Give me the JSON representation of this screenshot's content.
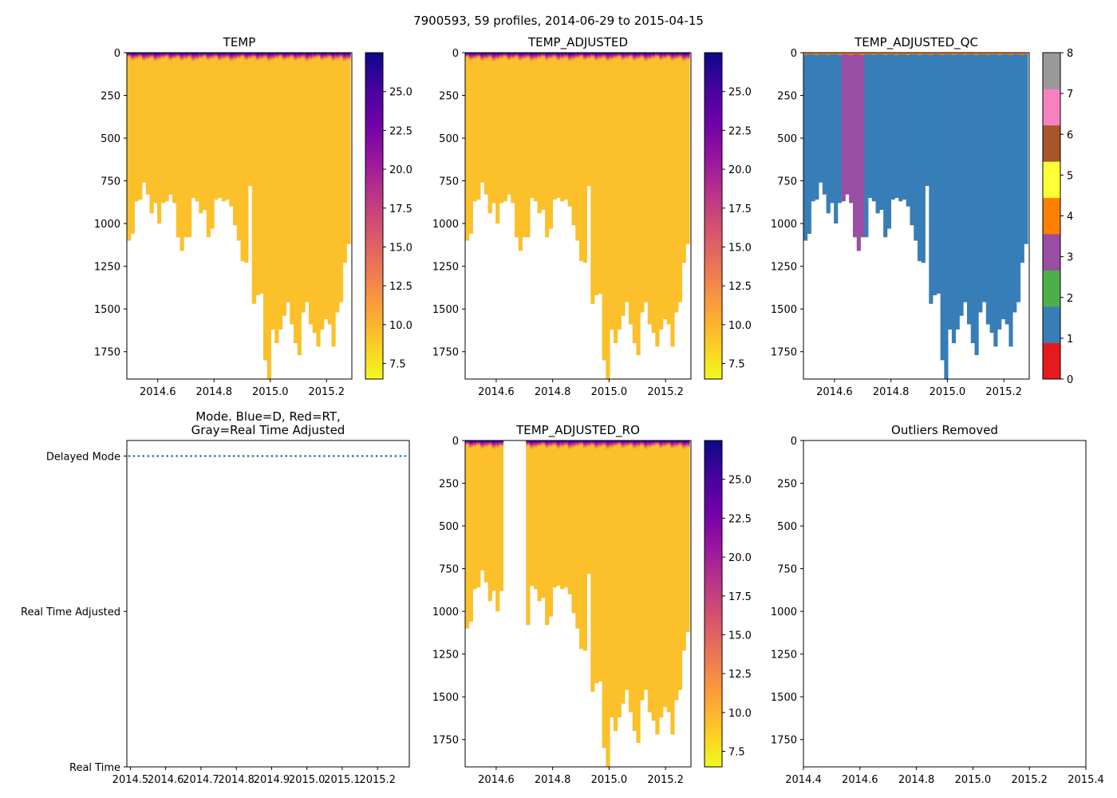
{
  "title": "7900593, 59 profiles, 2014-06-29 to 2015-04-15",
  "colors": {
    "mask_white": "#ffffff",
    "temp_surface_stops": [
      "#0d0887",
      "#7e03a8",
      "#cc4778",
      "#f89540",
      "#fbc82d"
    ],
    "temp_deep": "#fbc02a",
    "qc_1_color": "#377eb8",
    "qc_3_color": "#984ea3",
    "qc_4_color": "#ff7f00",
    "mode_dots": "#1f77b4",
    "plasma_stops": [
      "#f0f921",
      "#fdca26",
      "#fb9f3a",
      "#ed7953",
      "#d8576b",
      "#bd3786",
      "#9c179e",
      "#7201a8",
      "#46039f",
      "#0d0887"
    ],
    "qc_stops": [
      "#e41a1c",
      "#377eb8",
      "#4daf4a",
      "#984ea3",
      "#ff7f00",
      "#ffff33",
      "#a65628",
      "#f781bf",
      "#999999"
    ]
  },
  "chart_data": [
    {
      "type": "heatmap",
      "title": "TEMP",
      "x_ticks": [
        "2014.6",
        "2014.8",
        "2015.0",
        "2015.2"
      ],
      "x_tick_values": [
        2014.6,
        2014.8,
        2015.0,
        2015.2
      ],
      "y_ticks": [
        "0",
        "250",
        "500",
        "750",
        "1000",
        "1250",
        "1500",
        "1750"
      ],
      "y_tick_values": [
        0,
        250,
        500,
        750,
        1000,
        1250,
        1500,
        1750
      ],
      "xlim": [
        2014.49,
        2015.29
      ],
      "ylim": [
        1910,
        0
      ],
      "colorbar": {
        "ticks": [
          "7.5",
          "10.0",
          "12.5",
          "15.0",
          "17.5",
          "20.0",
          "22.5",
          "25.0"
        ],
        "tick_values": [
          7.5,
          10,
          12.5,
          15,
          17.5,
          20,
          22.5,
          25
        ],
        "range": [
          6.5,
          27.5
        ]
      },
      "profile_time_range": [
        2014.49,
        2015.285
      ],
      "max_depth": [
        1100,
        1060,
        870,
        860,
        760,
        830,
        940,
        880,
        1000,
        880,
        870,
        830,
        880,
        1080,
        1160,
        1080,
        1080,
        850,
        870,
        940,
        920,
        1080,
        1030,
        860,
        850,
        870,
        860,
        900,
        1010,
        1100,
        1220,
        1230,
        780,
        1470,
        1420,
        1410,
        1800,
        1910,
        1620,
        1700,
        1620,
        1540,
        1460,
        1590,
        1700,
        1770,
        1520,
        1460,
        1590,
        1640,
        1720,
        1620,
        1560,
        1590,
        1720,
        1520,
        1460,
        1230,
        1120
      ],
      "surface_mixed_layer_m": 60
    },
    {
      "type": "heatmap",
      "title": "TEMP_ADJUSTED",
      "x_ticks": [
        "2014.6",
        "2014.8",
        "2015.0",
        "2015.2"
      ],
      "x_tick_values": [
        2014.6,
        2014.8,
        2015.0,
        2015.2
      ],
      "y_ticks": [
        "0",
        "250",
        "500",
        "750",
        "1000",
        "1250",
        "1500",
        "1750"
      ],
      "y_tick_values": [
        0,
        250,
        500,
        750,
        1000,
        1250,
        1500,
        1750
      ],
      "xlim": [
        2014.49,
        2015.29
      ],
      "ylim": [
        1910,
        0
      ],
      "colorbar": {
        "ticks": [
          "7.5",
          "10.0",
          "12.5",
          "15.0",
          "17.5",
          "20.0",
          "22.5",
          "25.0"
        ],
        "tick_values": [
          7.5,
          10,
          12.5,
          15,
          17.5,
          20,
          22.5,
          25
        ],
        "range": [
          6.5,
          27.5
        ]
      },
      "same_profiles_as": "TEMP"
    },
    {
      "type": "heatmap",
      "title": "TEMP_ADJUSTED_QC",
      "x_ticks": [
        "2014.6",
        "2014.8",
        "2015.0",
        "2015.2"
      ],
      "x_tick_values": [
        2014.6,
        2014.8,
        2015.0,
        2015.2
      ],
      "y_ticks": [
        "0",
        "250",
        "500",
        "750",
        "1000",
        "1250",
        "1500",
        "1750"
      ],
      "y_tick_values": [
        0,
        250,
        500,
        750,
        1000,
        1250,
        1500,
        1750
      ],
      "xlim": [
        2014.49,
        2015.29
      ],
      "ylim": [
        1910,
        0
      ],
      "colorbar": {
        "ticks": [
          "0",
          "1",
          "2",
          "3",
          "4",
          "5",
          "6",
          "7",
          "8"
        ],
        "tick_values": [
          0,
          1,
          2,
          3,
          4,
          5,
          6,
          7,
          8
        ],
        "range": [
          0,
          8
        ]
      },
      "qc_3_profile_range": [
        2014.625,
        2014.705
      ],
      "qc_default_flag": 1
    },
    {
      "type": "scatter",
      "title": "Mode. Blue=D, Red=RT,\nGray=Real Time Adjusted",
      "title_lines": [
        "Mode. Blue=D, Red=RT,",
        "Gray=Real Time Adjusted"
      ],
      "x_ticks": [
        "2014.5",
        "2014.6",
        "2014.7",
        "2014.8",
        "2014.9",
        "2015.0",
        "2015.1",
        "2015.2"
      ],
      "x_tick_values": [
        2014.5,
        2014.6,
        2014.7,
        2014.8,
        2014.9,
        2015.0,
        2015.1,
        2015.2
      ],
      "y_ticks": [
        "Delayed Mode",
        "Real Time Adjusted",
        "Real Time"
      ],
      "y_tick_values": [
        2,
        1,
        0
      ],
      "xlim": [
        2014.49,
        2015.29
      ],
      "ylim": [
        0,
        2.1
      ],
      "mode_value": 2
    },
    {
      "type": "heatmap",
      "title": "TEMP_ADJUSTED_RO",
      "x_ticks": [
        "2014.6",
        "2014.8",
        "2015.0",
        "2015.2"
      ],
      "x_tick_values": [
        2014.6,
        2014.8,
        2015.0,
        2015.2
      ],
      "y_ticks": [
        "0",
        "250",
        "500",
        "750",
        "1000",
        "1250",
        "1500",
        "1750"
      ],
      "y_tick_values": [
        0,
        250,
        500,
        750,
        1000,
        1250,
        1500,
        1750
      ],
      "xlim": [
        2014.49,
        2015.29
      ],
      "ylim": [
        1910,
        0
      ],
      "colorbar": {
        "ticks": [
          "7.5",
          "10.0",
          "12.5",
          "15.0",
          "17.5",
          "20.0",
          "22.5",
          "25.0"
        ],
        "tick_values": [
          7.5,
          10,
          12.5,
          15,
          17.5,
          20,
          22.5,
          25
        ],
        "range": [
          6.5,
          27.5
        ]
      },
      "removed_range": [
        2014.63,
        2014.705
      ]
    },
    {
      "type": "scatter",
      "title": "Outliers Removed",
      "x_ticks": [
        "2014.4",
        "2014.6",
        "2014.8",
        "2015.0",
        "2015.2",
        "2015.4"
      ],
      "x_tick_values": [
        2014.4,
        2014.6,
        2014.8,
        2015.0,
        2015.2,
        2015.4
      ],
      "y_ticks": [
        "0",
        "250",
        "500",
        "750",
        "1000",
        "1250",
        "1500",
        "1750"
      ],
      "y_tick_values": [
        0,
        250,
        500,
        750,
        1000,
        1250,
        1500,
        1750
      ],
      "xlim": [
        2014.4,
        2015.4
      ],
      "ylim": [
        1910,
        0
      ],
      "points": []
    }
  ]
}
